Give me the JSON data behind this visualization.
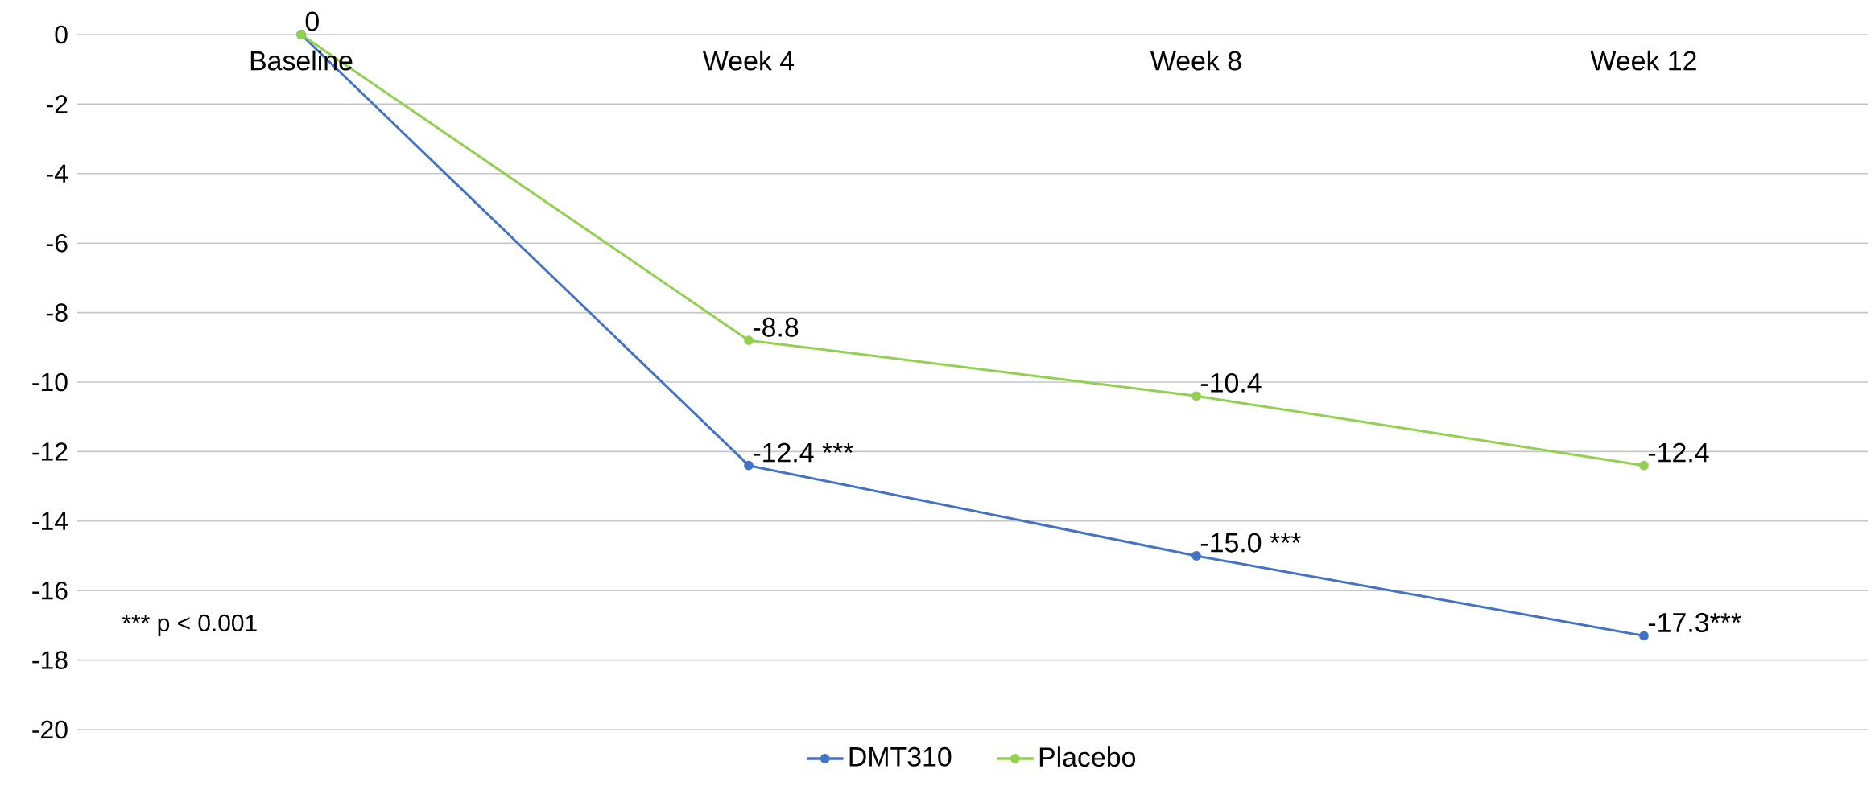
{
  "chart_data": {
    "type": "line",
    "categories": [
      "Baseline",
      "Week 4",
      "Week 8",
      "Week 12"
    ],
    "series": [
      {
        "name": "DMT310",
        "color": "#4472c4",
        "values": [
          0,
          -12.4,
          -15.0,
          -17.3
        ],
        "value_labels": [
          null,
          "-12.4 ***",
          "-15.0 ***",
          "-17.3***"
        ]
      },
      {
        "name": "Placebo",
        "color": "#92d050",
        "values": [
          0,
          -8.8,
          -10.4,
          -12.4
        ],
        "value_labels": [
          "0",
          "-8.8",
          "-10.4",
          "-12.4"
        ]
      }
    ],
    "ylim": [
      -20,
      0
    ],
    "yticks": [
      -20,
      -18,
      -16,
      -14,
      -12,
      -10,
      -8,
      -6,
      -4,
      -2,
      0
    ],
    "grid": "y",
    "legend": "bottom",
    "marker": "circle",
    "line_style": "solid",
    "annotations": [
      "*** p < 0.001"
    ]
  }
}
